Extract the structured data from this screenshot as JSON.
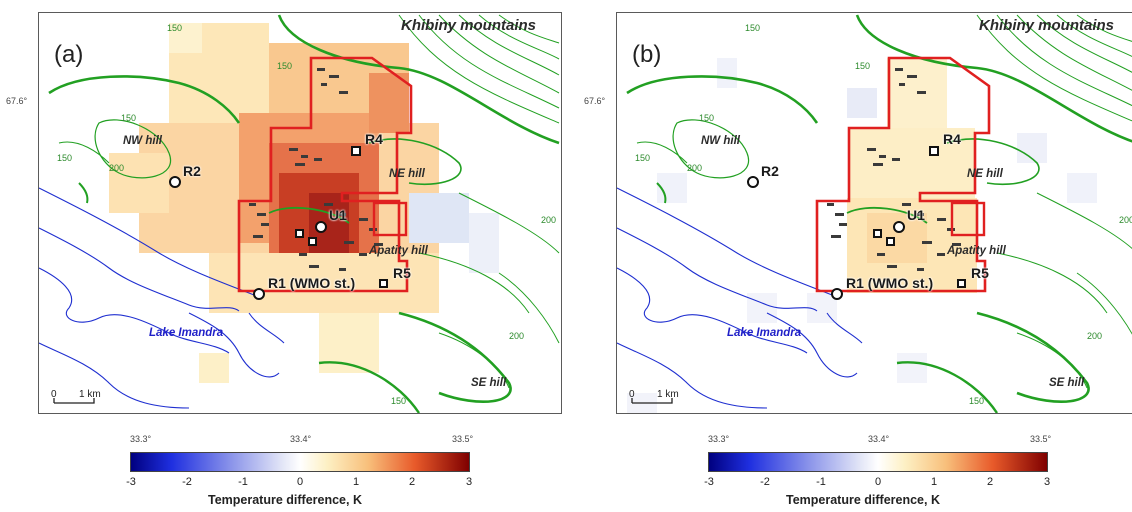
{
  "panels": [
    {
      "letter": "(a)"
    },
    {
      "letter": "(b)"
    }
  ],
  "map_labels": {
    "mountains": "Khibiny mountains",
    "nw_hill": "NW hill",
    "ne_hill": "NE hill",
    "apatity_hill": "Apatity hill",
    "se_hill": "SE hill",
    "lake": "Lake Imandra"
  },
  "stations": {
    "r1": "R1 (WMO st.)",
    "r2": "R2",
    "r4": "R4",
    "r5": "R5",
    "u1": "U1"
  },
  "contour_labels": [
    "150",
    "150",
    "200",
    "150",
    "150",
    "200",
    "150",
    "200"
  ],
  "scale_bar": {
    "zero": "0",
    "distance": "1 km"
  },
  "latitude_tick": "67.6°",
  "longitude_ticks": [
    "33.3°",
    "33.4°",
    "33.5°"
  ],
  "colorbar": {
    "ticks": [
      "-3",
      "-2",
      "-1",
      "0",
      "1",
      "2",
      "3"
    ],
    "title": "Temperature difference, K"
  },
  "colors": {
    "contour": "#22a022",
    "lake_outline": "#1f2fd0",
    "domain_outline": "#e02020",
    "colorbar_low": "#00007f",
    "colorbar_mid": "#ffffff",
    "colorbar_high": "#7f0000"
  }
}
